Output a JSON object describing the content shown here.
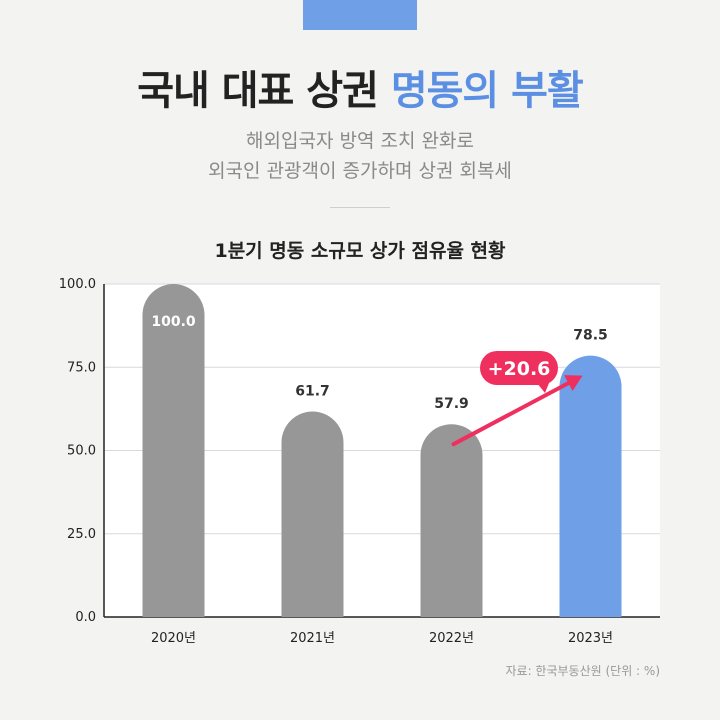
{
  "header": {
    "title_main": "국내 대표 상권",
    "title_accent": "명동의 부활",
    "subtitle_line1": "해외입국자 방역 조치 완화로",
    "subtitle_line2": "외국인 관광객이 증가하며 상권 회복세"
  },
  "colors": {
    "accent": "#5b8fe3",
    "bar_gray": "#979797",
    "bar_blue": "#6f9fe6",
    "arrow": "#ef2f5e"
  },
  "chart_data": {
    "type": "bar",
    "title": "1분기 명동 소규모 상가 점유율 현황",
    "categories": [
      "2020년",
      "2021년",
      "2022년",
      "2023년"
    ],
    "values": [
      100.0,
      61.7,
      57.9,
      78.5
    ],
    "value_labels": [
      "100.0",
      "61.7",
      "57.9",
      "78.5"
    ],
    "highlight_index": 3,
    "ylim": [
      0,
      100
    ],
    "yticks": [
      0,
      25,
      50,
      75,
      100
    ],
    "ytick_labels": [
      "0.0",
      "25.0",
      "50.0",
      "75.0",
      "100.0"
    ],
    "grid": true,
    "annotation": {
      "text": "+20.6",
      "from_index": 2,
      "to_index": 3
    }
  },
  "footer": {
    "source": "자료: 한국부동산원 (단위 : %)"
  }
}
